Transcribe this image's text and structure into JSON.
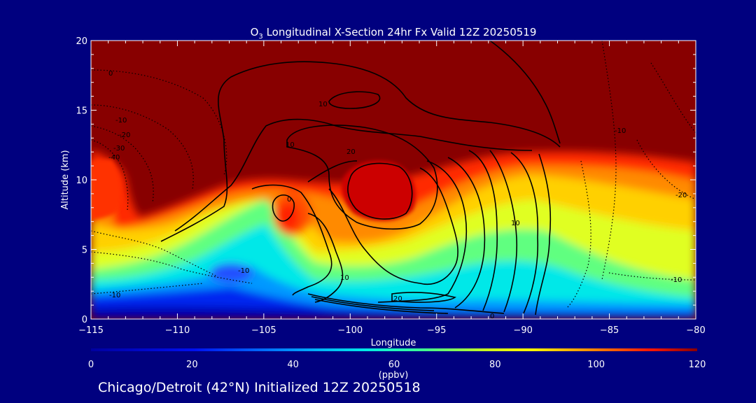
{
  "chart_data": {
    "type": "heatmap",
    "title_prefix": "O",
    "title_subscript": "3",
    "title_rest": " Longitudinal X-Section 24hr  Fx Valid 12Z 20250519",
    "xlabel": "Longitude",
    "ylabel": "Altitude (km)",
    "xlim": [
      -115,
      -80
    ],
    "ylim": [
      0,
      20
    ],
    "xticks": [
      "−115",
      "−110",
      "−105",
      "−100",
      "−95",
      "−90",
      "−85",
      "−80"
    ],
    "yticks": [
      "0",
      "5",
      "10",
      "15",
      "20"
    ],
    "colorbar": {
      "ticks": [
        "0",
        "20",
        "40",
        "60",
        "80",
        "100",
        "120"
      ],
      "unit": "(ppbv)",
      "range": [
        0,
        120
      ]
    },
    "contour_labels": [
      "0",
      "-10",
      "-20",
      "-30",
      "-40",
      "10",
      "20",
      "-10",
      "10",
      "0",
      "10",
      "20",
      "10",
      "-10",
      "-20",
      "-10",
      "-10",
      "0"
    ],
    "caption": "Chicago/Detroit (42°N) Initialized 12Z 20250518"
  }
}
